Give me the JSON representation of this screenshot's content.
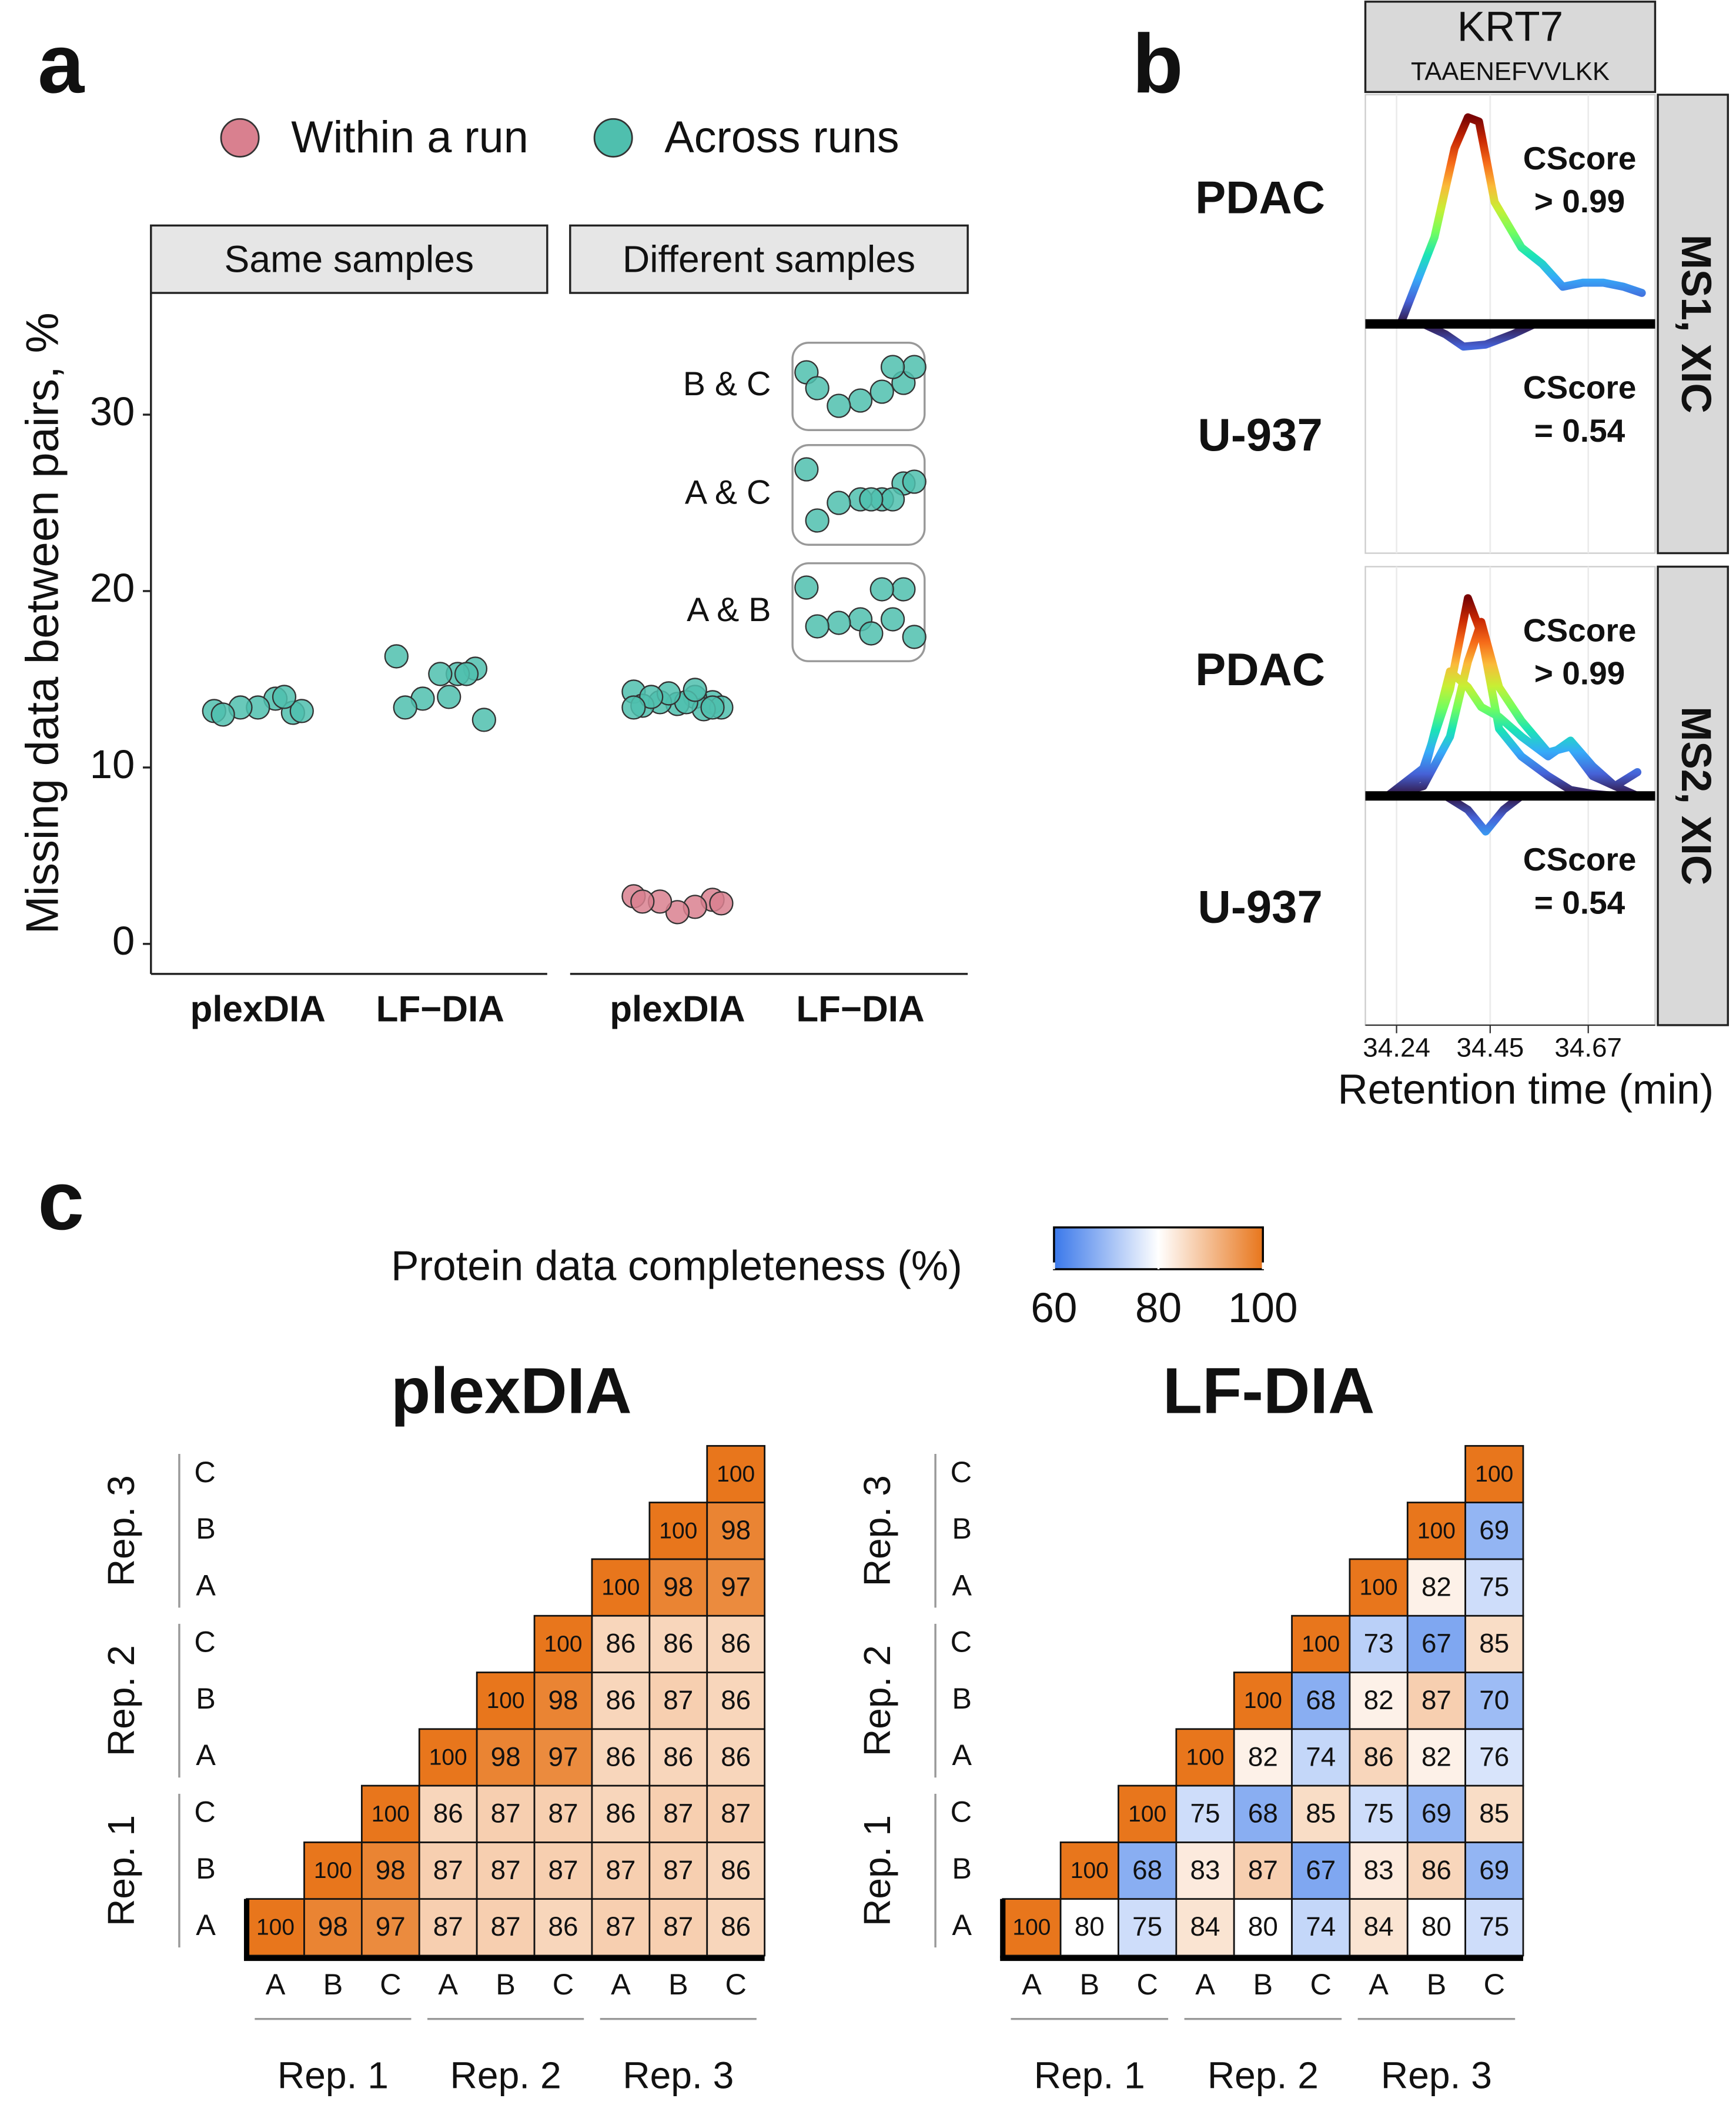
{
  "panel_labels": [
    "a",
    "b",
    "c"
  ],
  "chart_data": [
    {
      "type": "scatter",
      "facets": [
        "Same samples",
        "Different samples"
      ],
      "categories": [
        "plexDIA",
        "LF−DIA"
      ],
      "ylabel": "Missing data between pairs, %",
      "ylim": [
        -1.7,
        36.9
      ],
      "yticks": [
        0,
        10,
        20,
        30
      ],
      "series": [
        {
          "name": "Within a run",
          "color": "#d9808f",
          "values": [
            [
              [],
              []
            ],
            [
              [
                2.7,
                2.5,
                2.1,
                1.8,
                2.4,
                2.4,
                2.3
              ],
              []
            ]
          ]
        },
        {
          "name": "Across runs",
          "color": "#4fbfae",
          "values": [
            [
              [
                13.2,
                13.1,
                13.9,
                13.4,
                13.4,
                13.0,
                13.2,
                14.0
              ],
              [
                16.3,
                15.6,
                15.3,
                15.3,
                13.9,
                13.4,
                12.7,
                15.3,
                14.0
              ]
            ],
            [
              [
                14.3,
                13.7,
                14.0,
                13.6,
                13.7,
                13.5,
                13.4,
                13.3,
                13.7,
                14.2,
                14.0,
                13.4,
                13.4,
                14.4
              ],
              []
            ]
          ]
        }
      ],
      "groups": [
        {
          "label": "B & C",
          "values": [
            32.4,
            31.8,
            31.3,
            30.8,
            30.5,
            31.5,
            32.7,
            32.7
          ]
        },
        {
          "label": "A & C",
          "values": [
            26.9,
            26.1,
            25.2,
            25.2,
            25.0,
            24.0,
            26.2,
            25.2,
            25.2
          ]
        },
        {
          "label": "A & B",
          "values": [
            20.2,
            20.1,
            20.1,
            18.4,
            18.2,
            18.0,
            17.4,
            18.4,
            17.6
          ]
        }
      ]
    },
    {
      "type": "line",
      "title": "KRT7",
      "subtitle": "TAAENEFVVLKK",
      "xlabel": "Retention time (min)",
      "xlim": [
        34.17,
        34.82
      ],
      "xticks": [
        34.24,
        34.45,
        34.67
      ],
      "grid": true,
      "colors": [
        "#30123b",
        "#4662d7",
        "#36aaf9",
        "#1ae4b6",
        "#72fe5e",
        "#c7ef34",
        "#faba39",
        "#f66b19",
        "#ca2a04",
        "#7a0403"
      ],
      "panels": [
        {
          "label": "MS1, XIC",
          "ylim": [
            -1.11,
            1.11
          ],
          "samples": [
            {
              "name": "PDAC",
              "cscore_label": "CScore",
              "cscore": "> 0.99",
              "lines": [
                {
                  "x": [
                    34.249,
                    34.325,
                    34.37,
                    34.4,
                    34.425,
                    34.46,
                    34.52,
                    34.567,
                    34.613,
                    34.658,
                    34.704,
                    34.749,
                    34.79
                  ],
                  "values": [
                    0,
                    0.42,
                    0.85,
                    1.0,
                    0.98,
                    0.59,
                    0.37,
                    0.29,
                    0.18,
                    0.2,
                    0.2,
                    0.18,
                    0.15
                  ]
                }
              ]
            },
            {
              "name": "U-937",
              "cscore_label": "CScore",
              "cscore": "= 0.54",
              "lines": [
                {
                  "x": [
                    34.3,
                    34.35,
                    34.39,
                    34.44,
                    34.5,
                    34.55
                  ],
                  "values": [
                    0,
                    -0.05,
                    -0.11,
                    -0.1,
                    -0.05,
                    0
                  ]
                }
              ]
            }
          ]
        },
        {
          "label": "MS2, XIC",
          "ylim": [
            -1.16,
            1.16
          ],
          "samples": [
            {
              "name": "PDAC",
              "cscore_label": "CScore",
              "cscore": "> 0.99",
              "lines": [
                {
                  "x": [
                    34.22,
                    34.3,
                    34.36,
                    34.4,
                    34.43,
                    34.47,
                    34.52,
                    34.58,
                    34.63,
                    34.68,
                    34.73,
                    34.78
                  ],
                  "values": [
                    0,
                    0.14,
                    0.54,
                    1.0,
                    0.82,
                    0.34,
                    0.2,
                    0.1,
                    0.03,
                    0.01,
                    0,
                    0
                  ]
                },
                {
                  "x": [
                    34.22,
                    34.3,
                    34.36,
                    34.4,
                    34.43,
                    34.47,
                    34.52,
                    34.58,
                    34.63,
                    34.68,
                    34.73,
                    34.78
                  ],
                  "values": [
                    0,
                    0.05,
                    0.3,
                    0.68,
                    0.88,
                    0.55,
                    0.38,
                    0.22,
                    0.25,
                    0.1,
                    0.05,
                    0.12
                  ]
                },
                {
                  "x": [
                    34.22,
                    34.3,
                    34.36,
                    34.4,
                    34.43,
                    34.47,
                    34.52,
                    34.58,
                    34.63,
                    34.68,
                    34.73,
                    34.78
                  ],
                  "values": [
                    0,
                    0.1,
                    0.63,
                    0.55,
                    0.45,
                    0.4,
                    0.3,
                    0.2,
                    0.28,
                    0.15,
                    0.05,
                    0
                  ]
                }
              ]
            },
            {
              "name": "U-937",
              "cscore_label": "CScore",
              "cscore": "= 0.54",
              "lines": [
                {
                  "x": [
                    34.35,
                    34.4,
                    34.44,
                    34.48,
                    34.52
                  ],
                  "values": [
                    0,
                    -0.07,
                    -0.18,
                    -0.07,
                    0
                  ]
                }
              ]
            }
          ]
        }
      ]
    },
    {
      "type": "heatmap",
      "title": "plexDIA",
      "categories": [
        "A",
        "B",
        "C",
        "A",
        "B",
        "C",
        "A",
        "B",
        "C"
      ],
      "groups": [
        "Rep. 1",
        "Rep. 2",
        "Rep. 3"
      ],
      "colorbar": {
        "title": "Protein data completeness (%)",
        "clim": [
          60,
          100
        ],
        "ticks": [
          60,
          80,
          100
        ],
        "colors": [
          "#3a78ea",
          "#ffffff",
          "#e8761c"
        ]
      },
      "rows": [
        [
          100,
          98,
          97,
          87,
          87,
          86,
          87,
          87,
          86
        ],
        [
          null,
          100,
          98,
          87,
          87,
          87,
          87,
          87,
          86
        ],
        [
          null,
          null,
          100,
          86,
          87,
          87,
          86,
          87,
          87
        ],
        [
          null,
          null,
          null,
          100,
          98,
          97,
          86,
          86,
          86
        ],
        [
          null,
          null,
          null,
          null,
          100,
          98,
          86,
          87,
          86
        ],
        [
          null,
          null,
          null,
          null,
          null,
          100,
          86,
          86,
          86
        ],
        [
          null,
          null,
          null,
          null,
          null,
          null,
          100,
          98,
          97
        ],
        [
          null,
          null,
          null,
          null,
          null,
          null,
          null,
          100,
          98
        ],
        [
          null,
          null,
          null,
          null,
          null,
          null,
          null,
          null,
          100
        ]
      ]
    },
    {
      "type": "heatmap",
      "title": "LF-DIA",
      "categories": [
        "A",
        "B",
        "C",
        "A",
        "B",
        "C",
        "A",
        "B",
        "C"
      ],
      "groups": [
        "Rep. 1",
        "Rep. 2",
        "Rep. 3"
      ],
      "rows": [
        [
          100,
          80,
          75,
          84,
          80,
          74,
          84,
          80,
          75
        ],
        [
          null,
          100,
          68,
          83,
          87,
          67,
          83,
          86,
          69
        ],
        [
          null,
          null,
          100,
          75,
          68,
          85,
          75,
          69,
          85
        ],
        [
          null,
          null,
          null,
          100,
          82,
          74,
          86,
          82,
          76
        ],
        [
          null,
          null,
          null,
          null,
          100,
          68,
          82,
          87,
          70
        ],
        [
          null,
          null,
          null,
          null,
          null,
          100,
          73,
          67,
          85
        ],
        [
          null,
          null,
          null,
          null,
          null,
          null,
          100,
          82,
          75
        ],
        [
          null,
          null,
          null,
          null,
          null,
          null,
          null,
          100,
          69
        ],
        [
          null,
          null,
          null,
          null,
          null,
          null,
          null,
          null,
          100
        ]
      ]
    }
  ]
}
